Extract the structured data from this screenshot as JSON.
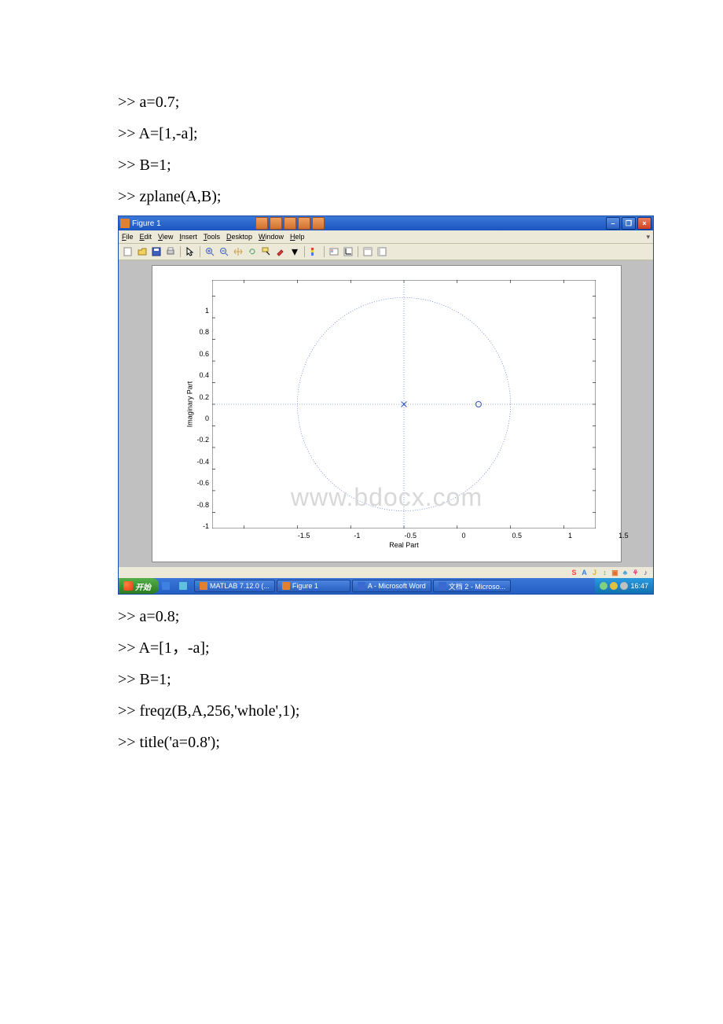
{
  "code_before": [
    ">> a=0.7;",
    ">> A=[1,-a];",
    ">> B=1;",
    ">> zplane(A,B);"
  ],
  "code_after": [
    ">> a=0.8;",
    ">> A=[1，-a];",
    ">> B=1;",
    ">> freqz(B,A,256,'whole',1);",
    ">> title('a=0.8');"
  ],
  "window": {
    "title": "Figure 1",
    "menu": [
      "File",
      "Edit",
      "View",
      "Insert",
      "Tools",
      "Desktop",
      "Window",
      "Help"
    ],
    "close": "×",
    "max": "❐",
    "min": "–"
  },
  "chart": {
    "type": "zplane",
    "xlabel": "Real Part",
    "ylabel": "Imaginary Part",
    "xlim": [
      -1.8,
      1.8
    ],
    "ylim": [
      -1.15,
      1.15
    ],
    "xticks": [
      -1.5,
      -1,
      -0.5,
      0,
      0.5,
      1,
      1.5
    ],
    "yticks": [
      -1,
      -0.8,
      -0.6,
      -0.4,
      -0.2,
      0,
      0.2,
      0.4,
      0.6,
      0.8,
      1
    ],
    "unit_circle_radius": 1.0,
    "circle_color": "#4060d0",
    "circle_dash": "1,2",
    "axis_line_color": "#4060d0",
    "zeros": [
      {
        "re": 0.7,
        "im": 0
      }
    ],
    "poles": [
      {
        "re": 0,
        "im": 0
      }
    ],
    "zero_marker": "o",
    "pole_marker": "x",
    "marker_color": "#3050c0",
    "background": "#ffffff",
    "panel_bg": "#c0c0c0"
  },
  "watermark": "www.bdocx.com",
  "taskbar": {
    "start": "开始",
    "items": [
      {
        "label": "MATLAB  7.12.0 (...",
        "color": "#e08030"
      },
      {
        "label": "Figure 1",
        "color": "#e08030"
      },
      {
        "label": "A - Microsoft Word",
        "color": "#3a6ad0"
      },
      {
        "label": "文档 2 - Microso...",
        "color": "#3a6ad0"
      }
    ],
    "clock": "16:47"
  },
  "tray_icons": [
    "S",
    "A",
    "J",
    "↕",
    "▣",
    "♣",
    "⚘",
    "♪"
  ],
  "tray_colors": [
    "#ff4040",
    "#3080e0",
    "#e0b030",
    "#60a060",
    "#e07030",
    "#40a0e0",
    "#e04080",
    "#4040a0"
  ]
}
